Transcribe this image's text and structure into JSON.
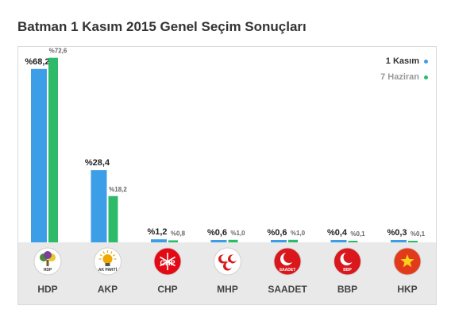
{
  "title": "Batman 1 Kasım 2015 Genel Seçim Sonuçları",
  "legend": {
    "current": {
      "label": "1 Kasım",
      "color": "#3d9ee8"
    },
    "previous": {
      "label": "7 Haziran",
      "color": "#2dbb6a"
    }
  },
  "chart_data": {
    "type": "bar",
    "title": "Batman 1 Kasım 2015 Genel Seçim Sonuçları",
    "categories": [
      "HDP",
      "AKP",
      "CHP",
      "MHP",
      "SAADET",
      "BBP",
      "HKP"
    ],
    "series": [
      {
        "name": "1 Kasım",
        "color": "#3d9ee8",
        "values": [
          68.2,
          28.4,
          1.2,
          0.6,
          0.6,
          0.4,
          0.3
        ],
        "labels": [
          "%68,2",
          "%28,4",
          "%1,2",
          "%0,6",
          "%0,6",
          "%0,4",
          "%0,3"
        ]
      },
      {
        "name": "7 Haziran",
        "color": "#2dbb6a",
        "values": [
          72.6,
          18.2,
          0.8,
          1.0,
          1.0,
          0.1,
          0.1
        ],
        "labels": [
          "%72,6",
          "%18,2",
          "%0,8",
          "%1,0",
          "%1,0",
          "%0,1",
          "%0,1"
        ]
      }
    ],
    "ylim": [
      0,
      100
    ],
    "legend_position": "top-right"
  },
  "logos": [
    {
      "party": "HDP",
      "icon": "hdp-tree-logo-icon",
      "bg": "#ffffff",
      "fg": "#4a8a3a",
      "text": "HDP"
    },
    {
      "party": "AKP",
      "icon": "akp-bulb-logo-icon",
      "bg": "#ffffff",
      "fg": "#f0a800",
      "text": "AK PARTİ"
    },
    {
      "party": "CHP",
      "icon": "chp-six-arrows-logo-icon",
      "bg": "#e30a17",
      "fg": "#ffffff",
      "text": "CHP"
    },
    {
      "party": "MHP",
      "icon": "mhp-crescents-logo-icon",
      "bg": "#ffffff",
      "fg": "#d9171d",
      "text": ""
    },
    {
      "party": "SAADET",
      "icon": "saadet-crescent-logo-icon",
      "bg": "#d9171d",
      "fg": "#ffffff",
      "text": "SAADET"
    },
    {
      "party": "BBP",
      "icon": "bbp-crescent-logo-icon",
      "bg": "#d9171d",
      "fg": "#ffffff",
      "text": "BBP"
    },
    {
      "party": "HKP",
      "icon": "hkp-star-logo-icon",
      "bg": "#e23b1b",
      "fg": "#f7d21a",
      "text": ""
    }
  ]
}
